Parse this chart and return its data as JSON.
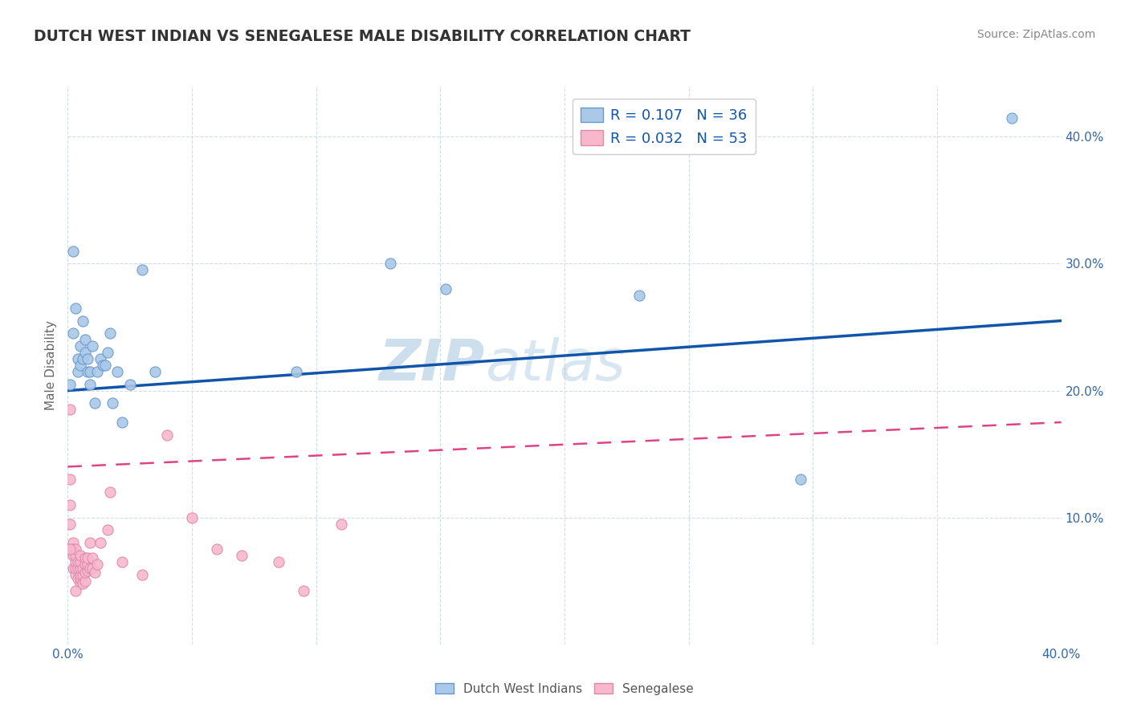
{
  "title": "DUTCH WEST INDIAN VS SENEGALESE MALE DISABILITY CORRELATION CHART",
  "source": "Source: ZipAtlas.com",
  "ylabel": "Male Disability",
  "watermark_part1": "ZIP",
  "watermark_part2": "atlas",
  "blue_label": "Dutch West Indians",
  "pink_label": "Senegalese",
  "blue_R": 0.107,
  "blue_N": 36,
  "pink_R": 0.032,
  "pink_N": 53,
  "xlim": [
    0.0,
    0.4
  ],
  "ylim": [
    0.0,
    0.44
  ],
  "blue_x": [
    0.001,
    0.002,
    0.003,
    0.004,
    0.004,
    0.005,
    0.005,
    0.006,
    0.006,
    0.007,
    0.007,
    0.008,
    0.008,
    0.009,
    0.009,
    0.01,
    0.011,
    0.012,
    0.013,
    0.014,
    0.015,
    0.016,
    0.017,
    0.018,
    0.02,
    0.022,
    0.025,
    0.03,
    0.035,
    0.092,
    0.13,
    0.152,
    0.23,
    0.295,
    0.38,
    0.002
  ],
  "blue_y": [
    0.205,
    0.245,
    0.265,
    0.225,
    0.215,
    0.22,
    0.235,
    0.225,
    0.255,
    0.23,
    0.24,
    0.225,
    0.215,
    0.215,
    0.205,
    0.235,
    0.19,
    0.215,
    0.225,
    0.22,
    0.22,
    0.23,
    0.245,
    0.19,
    0.215,
    0.175,
    0.205,
    0.295,
    0.215,
    0.215,
    0.3,
    0.28,
    0.275,
    0.13,
    0.415,
    0.31
  ],
  "pink_x": [
    0.001,
    0.001,
    0.001,
    0.001,
    0.002,
    0.002,
    0.002,
    0.002,
    0.002,
    0.003,
    0.003,
    0.003,
    0.003,
    0.003,
    0.004,
    0.004,
    0.004,
    0.005,
    0.005,
    0.005,
    0.005,
    0.005,
    0.005,
    0.006,
    0.006,
    0.006,
    0.007,
    0.007,
    0.007,
    0.007,
    0.008,
    0.008,
    0.008,
    0.009,
    0.009,
    0.01,
    0.01,
    0.011,
    0.012,
    0.013,
    0.016,
    0.017,
    0.022,
    0.03,
    0.04,
    0.05,
    0.06,
    0.07,
    0.085,
    0.095,
    0.11,
    0.001,
    0.003
  ],
  "pink_y": [
    0.185,
    0.095,
    0.11,
    0.13,
    0.06,
    0.07,
    0.075,
    0.08,
    0.075,
    0.055,
    0.06,
    0.065,
    0.07,
    0.075,
    0.052,
    0.06,
    0.065,
    0.048,
    0.052,
    0.055,
    0.06,
    0.065,
    0.07,
    0.048,
    0.055,
    0.06,
    0.05,
    0.057,
    0.063,
    0.068,
    0.058,
    0.063,
    0.068,
    0.06,
    0.08,
    0.06,
    0.068,
    0.057,
    0.063,
    0.08,
    0.09,
    0.12,
    0.065,
    0.055,
    0.165,
    0.1,
    0.075,
    0.07,
    0.065,
    0.042,
    0.095,
    0.075,
    0.042
  ],
  "background_color": "#ffffff",
  "blue_dot_color": "#aac8e8",
  "blue_edge_color": "#6699cc",
  "blue_line_color": "#1155aa",
  "pink_dot_color": "#f8b8cc",
  "pink_edge_color": "#dd88aa",
  "pink_line_color": "#dd4488",
  "grid_color": "#d0dce8",
  "title_color": "#333333",
  "legend_text_color": "#1155aa",
  "axis_tick_color": "#3366aa",
  "ylabel_color": "#666666",
  "source_color": "#888888"
}
